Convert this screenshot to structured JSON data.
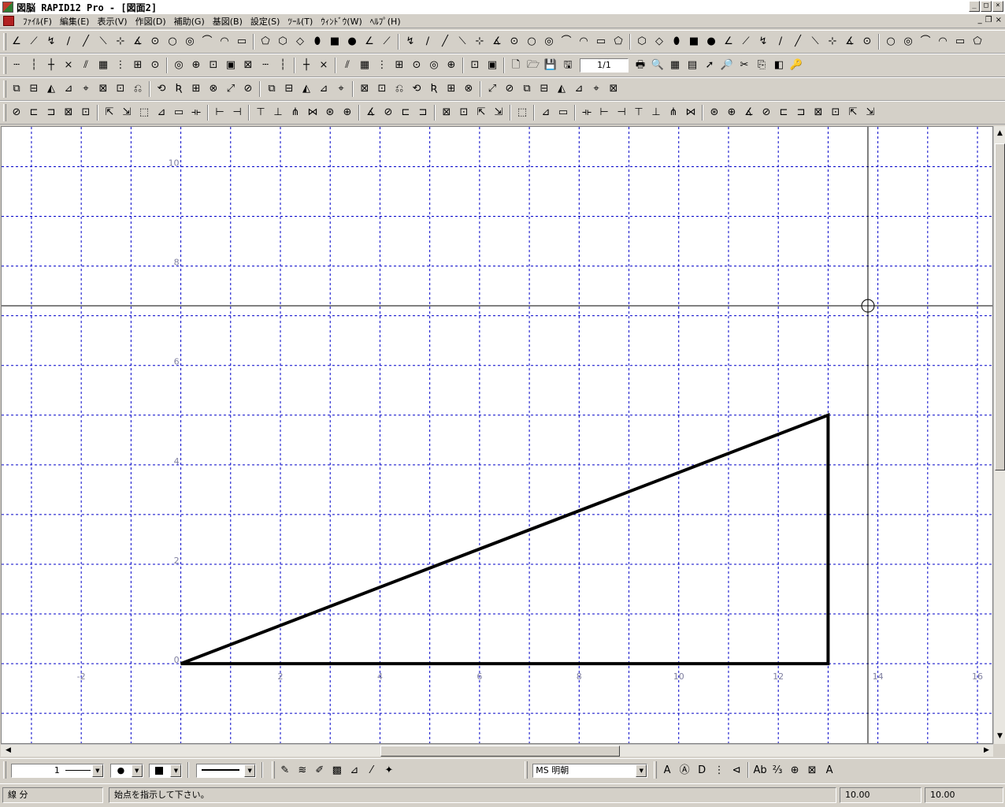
{
  "window": {
    "title": "図脳 RAPID12 Pro - [図面2]",
    "controls": [
      "_",
      "□",
      "×"
    ]
  },
  "menubar": {
    "items": [
      "ﾌｧｲﾙ(F)",
      "編集(E)",
      "表示(V)",
      "作図(D)",
      "補助(G)",
      "基図(B)",
      "設定(S)",
      "ﾂｰﾙ(T)",
      "ｳｨﾝﾄﾞｳ(W)",
      "ﾍﾙﾌﾟ(H)"
    ],
    "mdi_controls": [
      "_",
      "❐",
      "×"
    ]
  },
  "toolbar": {
    "page_indicator": "1/1"
  },
  "canvas": {
    "x_ticks": [
      {
        "label": "-2",
        "v": -2
      },
      {
        "label": "2",
        "v": 2
      },
      {
        "label": "4",
        "v": 4
      },
      {
        "label": "6",
        "v": 6
      },
      {
        "label": "8",
        "v": 8
      },
      {
        "label": "10",
        "v": 10
      },
      {
        "label": "12",
        "v": 12
      },
      {
        "label": "14",
        "v": 14
      },
      {
        "label": "16",
        "v": 16
      }
    ],
    "y_ticks": [
      {
        "label": "0",
        "v": 0
      },
      {
        "label": "2",
        "v": 2
      },
      {
        "label": "4",
        "v": 4
      },
      {
        "label": "6",
        "v": 6
      },
      {
        "label": "8",
        "v": 8
      },
      {
        "label": "10",
        "v": 10
      }
    ],
    "x_range": [
      -3.6,
      16.3
    ],
    "y_range": [
      -1.6,
      10.8
    ],
    "grid_step": 1,
    "triangle": [
      [
        0,
        0
      ],
      [
        13,
        0
      ],
      [
        13,
        5
      ]
    ],
    "cursor": [
      13.8,
      7.2
    ],
    "line_color": "#000000",
    "grid_color": "#0000c8"
  },
  "attributes": {
    "line_number": "1",
    "font_name": "MS 明朝"
  },
  "status": {
    "mode": "線 分",
    "prompt": "始点を指示して下さい。",
    "value1": "10.00",
    "value2": "10.00"
  }
}
